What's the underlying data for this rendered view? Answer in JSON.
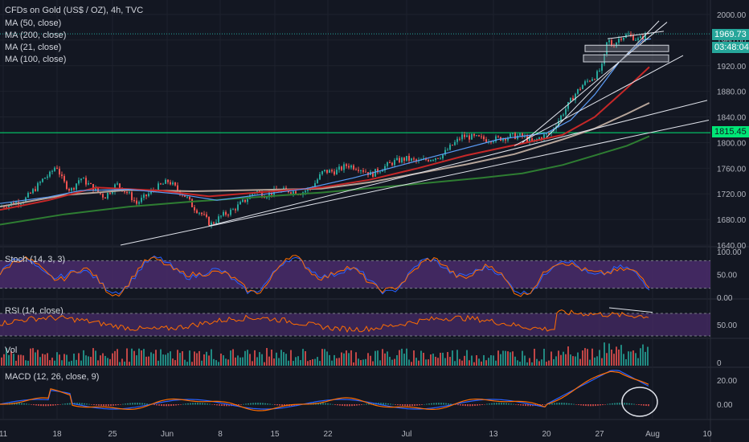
{
  "chart_data": {
    "type": "line",
    "title": "CFDs on Gold (US$ / OZ), 4h, TVC",
    "main_ylim": [
      1630,
      2020
    ],
    "main_yticks": [
      "2000.00",
      "1960.00",
      "1920.00",
      "1880.00",
      "1840.00",
      "1800.00",
      "1760.00",
      "1720.00",
      "1680.00",
      "1640.00"
    ],
    "x_ticks": [
      "11",
      "18",
      "25",
      "Jun",
      "8",
      "15",
      "22",
      "Jul",
      "13",
      "20",
      "27",
      "Aug",
      "10"
    ],
    "legend": [
      "MA (50, close)",
      "MA (200, close)",
      "MA (21, close)",
      "MA (100, close)"
    ],
    "last_price": "1969.73",
    "countdown": "03:48:04",
    "support_level": "1815.45",
    "price_series": [
      [
        0,
        1700
      ],
      [
        15,
        1705
      ],
      [
        30,
        1710
      ],
      [
        45,
        1730
      ],
      [
        55,
        1745
      ],
      [
        62,
        1750
      ],
      [
        70,
        1765
      ],
      [
        78,
        1740
      ],
      [
        88,
        1725
      ],
      [
        100,
        1745
      ],
      [
        115,
        1730
      ],
      [
        130,
        1715
      ],
      [
        145,
        1735
      ],
      [
        160,
        1720
      ],
      [
        170,
        1705
      ],
      [
        180,
        1715
      ],
      [
        195,
        1730
      ],
      [
        210,
        1740
      ],
      [
        222,
        1725
      ],
      [
        232,
        1715
      ],
      [
        240,
        1700
      ],
      [
        250,
        1690
      ],
      [
        262,
        1672
      ],
      [
        275,
        1685
      ],
      [
        290,
        1695
      ],
      [
        305,
        1710
      ],
      [
        318,
        1725
      ],
      [
        330,
        1718
      ],
      [
        345,
        1725
      ],
      [
        360,
        1725
      ],
      [
        375,
        1722
      ],
      [
        388,
        1730
      ],
      [
        402,
        1755
      ],
      [
        418,
        1755
      ],
      [
        432,
        1765
      ],
      [
        448,
        1760
      ],
      [
        462,
        1750
      ],
      [
        475,
        1760
      ],
      [
        490,
        1770
      ],
      [
        505,
        1775
      ],
      [
        520,
        1770
      ],
      [
        535,
        1775
      ],
      [
        550,
        1780
      ],
      [
        562,
        1795
      ],
      [
        575,
        1810
      ],
      [
        590,
        1808
      ],
      [
        605,
        1805
      ],
      [
        620,
        1806
      ],
      [
        635,
        1810
      ],
      [
        650,
        1810
      ],
      [
        662,
        1800
      ],
      [
        672,
        1808
      ],
      [
        685,
        1815
      ],
      [
        695,
        1835
      ],
      [
        705,
        1855
      ],
      [
        715,
        1875
      ],
      [
        725,
        1890
      ],
      [
        735,
        1900
      ],
      [
        742,
        1905
      ],
      [
        750,
        1920
      ],
      [
        756,
        1962
      ],
      [
        762,
        1950
      ],
      [
        772,
        1965
      ],
      [
        782,
        1968
      ],
      [
        795,
        1960
      ],
      [
        805,
        1970
      ],
      [
        810,
        1970
      ]
    ],
    "ma21": [
      [
        0,
        1705
      ],
      [
        60,
        1715
      ],
      [
        100,
        1725
      ],
      [
        160,
        1727
      ],
      [
        220,
        1720
      ],
      [
        270,
        1710
      ],
      [
        320,
        1718
      ],
      [
        380,
        1728
      ],
      [
        440,
        1745
      ],
      [
        500,
        1765
      ],
      [
        560,
        1785
      ],
      [
        620,
        1805
      ],
      [
        680,
        1815
      ],
      [
        710,
        1835
      ],
      [
        740,
        1875
      ],
      [
        770,
        1925
      ],
      [
        800,
        1960
      ],
      [
        810,
        1962
      ]
    ],
    "ma50": [
      [
        0,
        1695
      ],
      [
        60,
        1710
      ],
      [
        120,
        1730
      ],
      [
        200,
        1725
      ],
      [
        260,
        1716
      ],
      [
        340,
        1724
      ],
      [
        400,
        1730
      ],
      [
        460,
        1742
      ],
      [
        520,
        1760
      ],
      [
        580,
        1780
      ],
      [
        640,
        1796
      ],
      [
        700,
        1812
      ],
      [
        740,
        1840
      ],
      [
        780,
        1885
      ],
      [
        808,
        1918
      ]
    ],
    "ma100": [
      [
        0,
        1700
      ],
      [
        80,
        1718
      ],
      [
        160,
        1726
      ],
      [
        240,
        1724
      ],
      [
        320,
        1726
      ],
      [
        400,
        1728
      ],
      [
        460,
        1738
      ],
      [
        520,
        1752
      ],
      [
        580,
        1766
      ],
      [
        640,
        1782
      ],
      [
        700,
        1805
      ],
      [
        740,
        1822
      ],
      [
        780,
        1845
      ],
      [
        808,
        1862
      ]
    ],
    "ma200": [
      [
        0,
        1672
      ],
      [
        80,
        1688
      ],
      [
        160,
        1700
      ],
      [
        240,
        1708
      ],
      [
        320,
        1715
      ],
      [
        400,
        1722
      ],
      [
        470,
        1730
      ],
      [
        540,
        1738
      ],
      [
        600,
        1745
      ],
      [
        650,
        1752
      ],
      [
        700,
        1765
      ],
      [
        740,
        1780
      ],
      [
        780,
        1795
      ],
      [
        808,
        1810
      ]
    ],
    "trendlines": [
      [
        [
          150,
          1640
        ],
        [
          882,
          1835
        ]
      ],
      [
        [
          260,
          1670
        ],
        [
          880,
          1866
        ]
      ],
      [
        [
          640,
          1795
        ],
        [
          850,
          1936
        ]
      ],
      [
        [
          650,
          1800
        ],
        [
          830,
          1988
        ]
      ],
      [
        [
          680,
          1808
        ],
        [
          820,
          1990
        ]
      ]
    ],
    "rectangles": [
      [
        [
          728,
          1952
        ],
        [
          832,
          1942
        ]
      ],
      [
        [
          726,
          1937
        ],
        [
          832,
          1926
        ]
      ]
    ],
    "stoch": {
      "label": "Stoch (14, 3, 3)",
      "yticks": [
        "100.00",
        "50.00",
        "0.00"
      ]
    },
    "rsi": {
      "label": "RSI (14, close)",
      "yticks": [
        "50.00"
      ]
    },
    "vol": {
      "label": "Vol",
      "yticks": [
        "0"
      ]
    },
    "macd": {
      "label": "MACD (12, 26, close, 9)",
      "yticks": [
        "20.00",
        "0.00"
      ]
    },
    "colors": {
      "background": "#131722",
      "up": "#26a69a",
      "down": "#ef5350",
      "ma21": "#5b9cf6",
      "ma50": "#c62828",
      "ma100": "#b6a59a",
      "ma200": "#2e7d32",
      "support": "#00e676",
      "lastprice": "#26a69a",
      "osc_band": "#4a2c6b",
      "stoch_k": "#2962ff",
      "stoch_d": "#ff6d00",
      "rsi": "#ff6d00",
      "macd": "#2962ff",
      "signal": "#ff6d00"
    }
  }
}
